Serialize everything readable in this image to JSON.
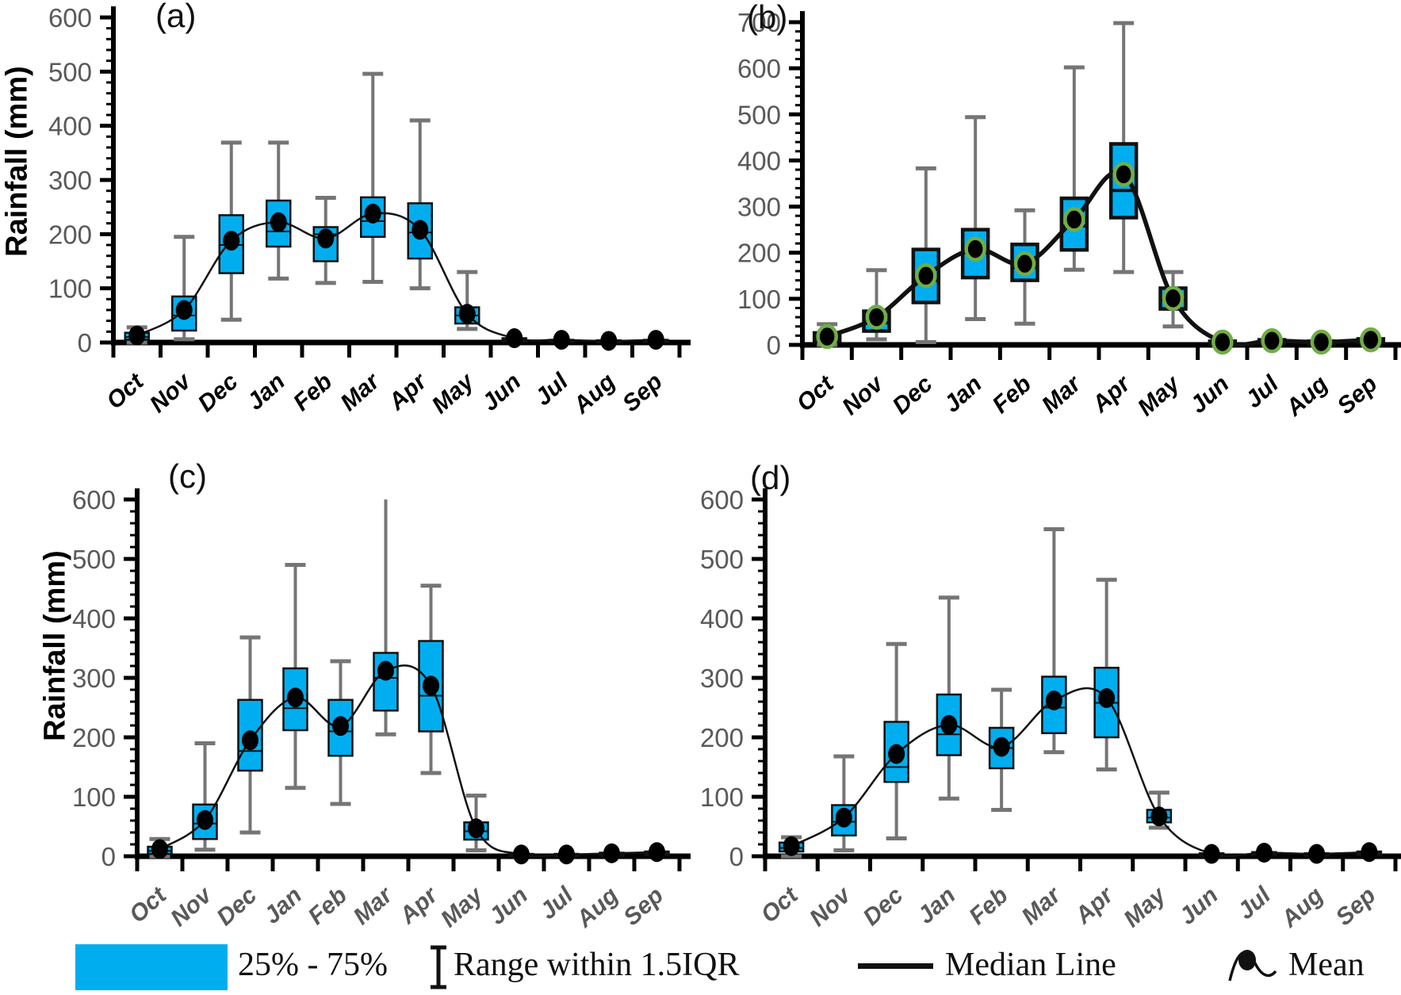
{
  "colors": {
    "box_fill": "#00AEEF",
    "box_stroke": "#111111",
    "whisker": "#757575",
    "axis": "#000000",
    "tick_label": "#595959",
    "month_label_black": "#000000",
    "month_label_gray": "#595959",
    "mean_fill": "#000000",
    "mean_ring_green": "#70AD47",
    "median_curve": "#111111"
  },
  "categories": [
    "Oct",
    "Nov",
    "Dec",
    "Jan",
    "Feb",
    "Mar",
    "Apr",
    "May",
    "Jun",
    "Jul",
    "Aug",
    "Sep"
  ],
  "legend": {
    "items": [
      {
        "icon": "box-swatch",
        "label": "25% - 75%"
      },
      {
        "icon": "range-whisker-icon",
        "label": "Range within 1.5IQR"
      },
      {
        "icon": "median-line-icon",
        "label": "Median Line"
      },
      {
        "icon": "mean-marker-icon",
        "label": "Mean"
      }
    ]
  },
  "chart_data": [
    {
      "type": "boxplot",
      "label": "(a)",
      "ylabel": "Rainfall (mm)",
      "xlabel": "",
      "ylim": [
        0,
        600
      ],
      "ytick_step": 100,
      "yminor_step": 20,
      "grid": false,
      "month_label_color": "black",
      "mean_marker": "black-dot",
      "median_line_weight": "thin",
      "boxes": [
        {
          "month": "Oct",
          "lo": 0,
          "q1": 5,
          "median": 10,
          "mean": 13,
          "q3": 18,
          "hi": 28
        },
        {
          "month": "Nov",
          "lo": 6,
          "q1": 22,
          "median": 50,
          "mean": 60,
          "q3": 85,
          "hi": 195
        },
        {
          "month": "Dec",
          "lo": 42,
          "q1": 128,
          "median": 180,
          "mean": 188,
          "q3": 235,
          "hi": 369
        },
        {
          "month": "Jan",
          "lo": 118,
          "q1": 177,
          "median": 205,
          "mean": 222,
          "q3": 262,
          "hi": 369
        },
        {
          "month": "Feb",
          "lo": 110,
          "q1": 150,
          "median": 200,
          "mean": 192,
          "q3": 213,
          "hi": 267
        },
        {
          "month": "Mar",
          "lo": 112,
          "q1": 195,
          "median": 224,
          "mean": 238,
          "q3": 268,
          "hi": 496
        },
        {
          "month": "Apr",
          "lo": 100,
          "q1": 155,
          "median": 203,
          "mean": 208,
          "q3": 257,
          "hi": 410
        },
        {
          "month": "May",
          "lo": 25,
          "q1": 35,
          "median": 50,
          "mean": 53,
          "q3": 65,
          "hi": 130
        },
        {
          "month": "Jun",
          "lo": null,
          "q1": 2,
          "median": 5,
          "mean": 8,
          "q3": 8,
          "hi": null
        },
        {
          "month": "Jul",
          "lo": null,
          "q1": 1,
          "median": 3,
          "mean": 5,
          "q3": 5,
          "hi": null
        },
        {
          "month": "Aug",
          "lo": null,
          "q1": 0,
          "median": 2,
          "mean": 3,
          "q3": 4,
          "hi": null
        },
        {
          "month": "Sep",
          "lo": null,
          "q1": 1,
          "median": 3,
          "mean": 5,
          "q3": 5,
          "hi": null
        }
      ]
    },
    {
      "type": "boxplot",
      "label": "(b)",
      "ylabel": "",
      "xlabel": "",
      "ylim": [
        0,
        700
      ],
      "ytick_step": 100,
      "yminor_step": 20,
      "grid": false,
      "month_label_color": "black",
      "mean_marker": "black-dot-green-ring",
      "median_line_weight": "thick",
      "boxes": [
        {
          "month": "Oct",
          "lo": 0,
          "q1": 8,
          "median": 15,
          "mean": 18,
          "q3": 26,
          "hi": 45
        },
        {
          "month": "Nov",
          "lo": 12,
          "q1": 30,
          "median": 48,
          "mean": 60,
          "q3": 73,
          "hi": 162
        },
        {
          "month": "Dec",
          "lo": 6,
          "q1": 92,
          "median": 140,
          "mean": 150,
          "q3": 207,
          "hi": 383
        },
        {
          "month": "Jan",
          "lo": 56,
          "q1": 146,
          "median": 200,
          "mean": 208,
          "q3": 250,
          "hi": 494
        },
        {
          "month": "Feb",
          "lo": 46,
          "q1": 140,
          "median": 168,
          "mean": 176,
          "q3": 218,
          "hi": 292
        },
        {
          "month": "Mar",
          "lo": 163,
          "q1": 206,
          "median": 258,
          "mean": 272,
          "q3": 318,
          "hi": 602
        },
        {
          "month": "Apr",
          "lo": 158,
          "q1": 276,
          "median": 335,
          "mean": 370,
          "q3": 436,
          "hi": 698
        },
        {
          "month": "May",
          "lo": 40,
          "q1": 78,
          "median": 98,
          "mean": 101,
          "q3": 123,
          "hi": 158
        },
        {
          "month": "Jun",
          "lo": null,
          "q1": 2,
          "median": 4,
          "mean": 6,
          "q3": 8,
          "hi": null
        },
        {
          "month": "Jul",
          "lo": null,
          "q1": 4,
          "median": 7,
          "mean": 9,
          "q3": 11,
          "hi": null
        },
        {
          "month": "Aug",
          "lo": null,
          "q1": 2,
          "median": 4,
          "mean": 6,
          "q3": 8,
          "hi": null
        },
        {
          "month": "Sep",
          "lo": null,
          "q1": 5,
          "median": 9,
          "mean": 11,
          "q3": 13,
          "hi": null
        }
      ]
    },
    {
      "type": "boxplot",
      "label": "(c)",
      "ylabel": "Rainfall (mm)",
      "xlabel": "",
      "ylim": [
        0,
        600
      ],
      "ytick_step": 100,
      "yminor_step": 20,
      "grid": false,
      "month_label_color": "gray",
      "mean_marker": "black-dot",
      "median_line_weight": "thin",
      "boxes": [
        {
          "month": "Oct",
          "lo": 0,
          "q1": 4,
          "median": 9,
          "mean": 12,
          "q3": 16,
          "hi": 29
        },
        {
          "month": "Nov",
          "lo": 11,
          "q1": 29,
          "median": 55,
          "mean": 61,
          "q3": 87,
          "hi": 190
        },
        {
          "month": "Dec",
          "lo": 40,
          "q1": 144,
          "median": 177,
          "mean": 195,
          "q3": 263,
          "hi": 368
        },
        {
          "month": "Jan",
          "lo": 115,
          "q1": 212,
          "median": 249,
          "mean": 267,
          "q3": 316,
          "hi": 490
        },
        {
          "month": "Feb",
          "lo": 88,
          "q1": 169,
          "median": 210,
          "mean": 219,
          "q3": 263,
          "hi": 328
        },
        {
          "month": "Mar",
          "lo": 205,
          "q1": 245,
          "median": 300,
          "mean": 312,
          "q3": 342,
          "hi": 600,
          "no_hi_cap": true
        },
        {
          "month": "Apr",
          "lo": 140,
          "q1": 210,
          "median": 270,
          "mean": 287,
          "q3": 362,
          "hi": 455
        },
        {
          "month": "May",
          "lo": 10,
          "q1": 28,
          "median": 42,
          "mean": 47,
          "q3": 57,
          "hi": 102
        },
        {
          "month": "Jun",
          "lo": null,
          "q1": 0,
          "median": 2,
          "mean": 3,
          "q3": 4,
          "hi": null
        },
        {
          "month": "Jul",
          "lo": null,
          "q1": 0,
          "median": 2,
          "mean": 3,
          "q3": 4,
          "hi": null
        },
        {
          "month": "Aug",
          "lo": null,
          "q1": 1,
          "median": 3,
          "mean": 5,
          "q3": 6,
          "hi": null
        },
        {
          "month": "Sep",
          "lo": null,
          "q1": 2,
          "median": 5,
          "mean": 7,
          "q3": 8,
          "hi": null
        }
      ]
    },
    {
      "type": "boxplot",
      "label": "(d)",
      "ylabel": "",
      "xlabel": "",
      "ylim": [
        0,
        600
      ],
      "ytick_step": 100,
      "yminor_step": 20,
      "grid": false,
      "month_label_color": "gray",
      "mean_marker": "black-dot",
      "median_line_weight": "thin",
      "boxes": [
        {
          "month": "Oct",
          "lo": 0,
          "q1": 8,
          "median": 14,
          "mean": 17,
          "q3": 23,
          "hi": 32
        },
        {
          "month": "Nov",
          "lo": 10,
          "q1": 35,
          "median": 58,
          "mean": 65,
          "q3": 86,
          "hi": 168
        },
        {
          "month": "Dec",
          "lo": 30,
          "q1": 125,
          "median": 150,
          "mean": 172,
          "q3": 226,
          "hi": 357
        },
        {
          "month": "Jan",
          "lo": 97,
          "q1": 170,
          "median": 205,
          "mean": 221,
          "q3": 272,
          "hi": 435
        },
        {
          "month": "Feb",
          "lo": 78,
          "q1": 148,
          "median": 182,
          "mean": 184,
          "q3": 216,
          "hi": 280
        },
        {
          "month": "Mar",
          "lo": 175,
          "q1": 207,
          "median": 250,
          "mean": 262,
          "q3": 302,
          "hi": 550
        },
        {
          "month": "Apr",
          "lo": 146,
          "q1": 200,
          "median": 258,
          "mean": 266,
          "q3": 317,
          "hi": 465
        },
        {
          "month": "May",
          "lo": 48,
          "q1": 57,
          "median": 65,
          "mean": 67,
          "q3": 78,
          "hi": 107
        },
        {
          "month": "Jun",
          "lo": null,
          "q1": 1,
          "median": 3,
          "mean": 4,
          "q3": 5,
          "hi": null
        },
        {
          "month": "Jul",
          "lo": null,
          "q1": 2,
          "median": 4,
          "mean": 6,
          "q3": 7,
          "hi": null
        },
        {
          "month": "Aug",
          "lo": null,
          "q1": 1,
          "median": 3,
          "mean": 4,
          "q3": 5,
          "hi": null
        },
        {
          "month": "Sep",
          "lo": null,
          "q1": 2,
          "median": 5,
          "mean": 7,
          "q3": 8,
          "hi": null
        }
      ]
    }
  ]
}
